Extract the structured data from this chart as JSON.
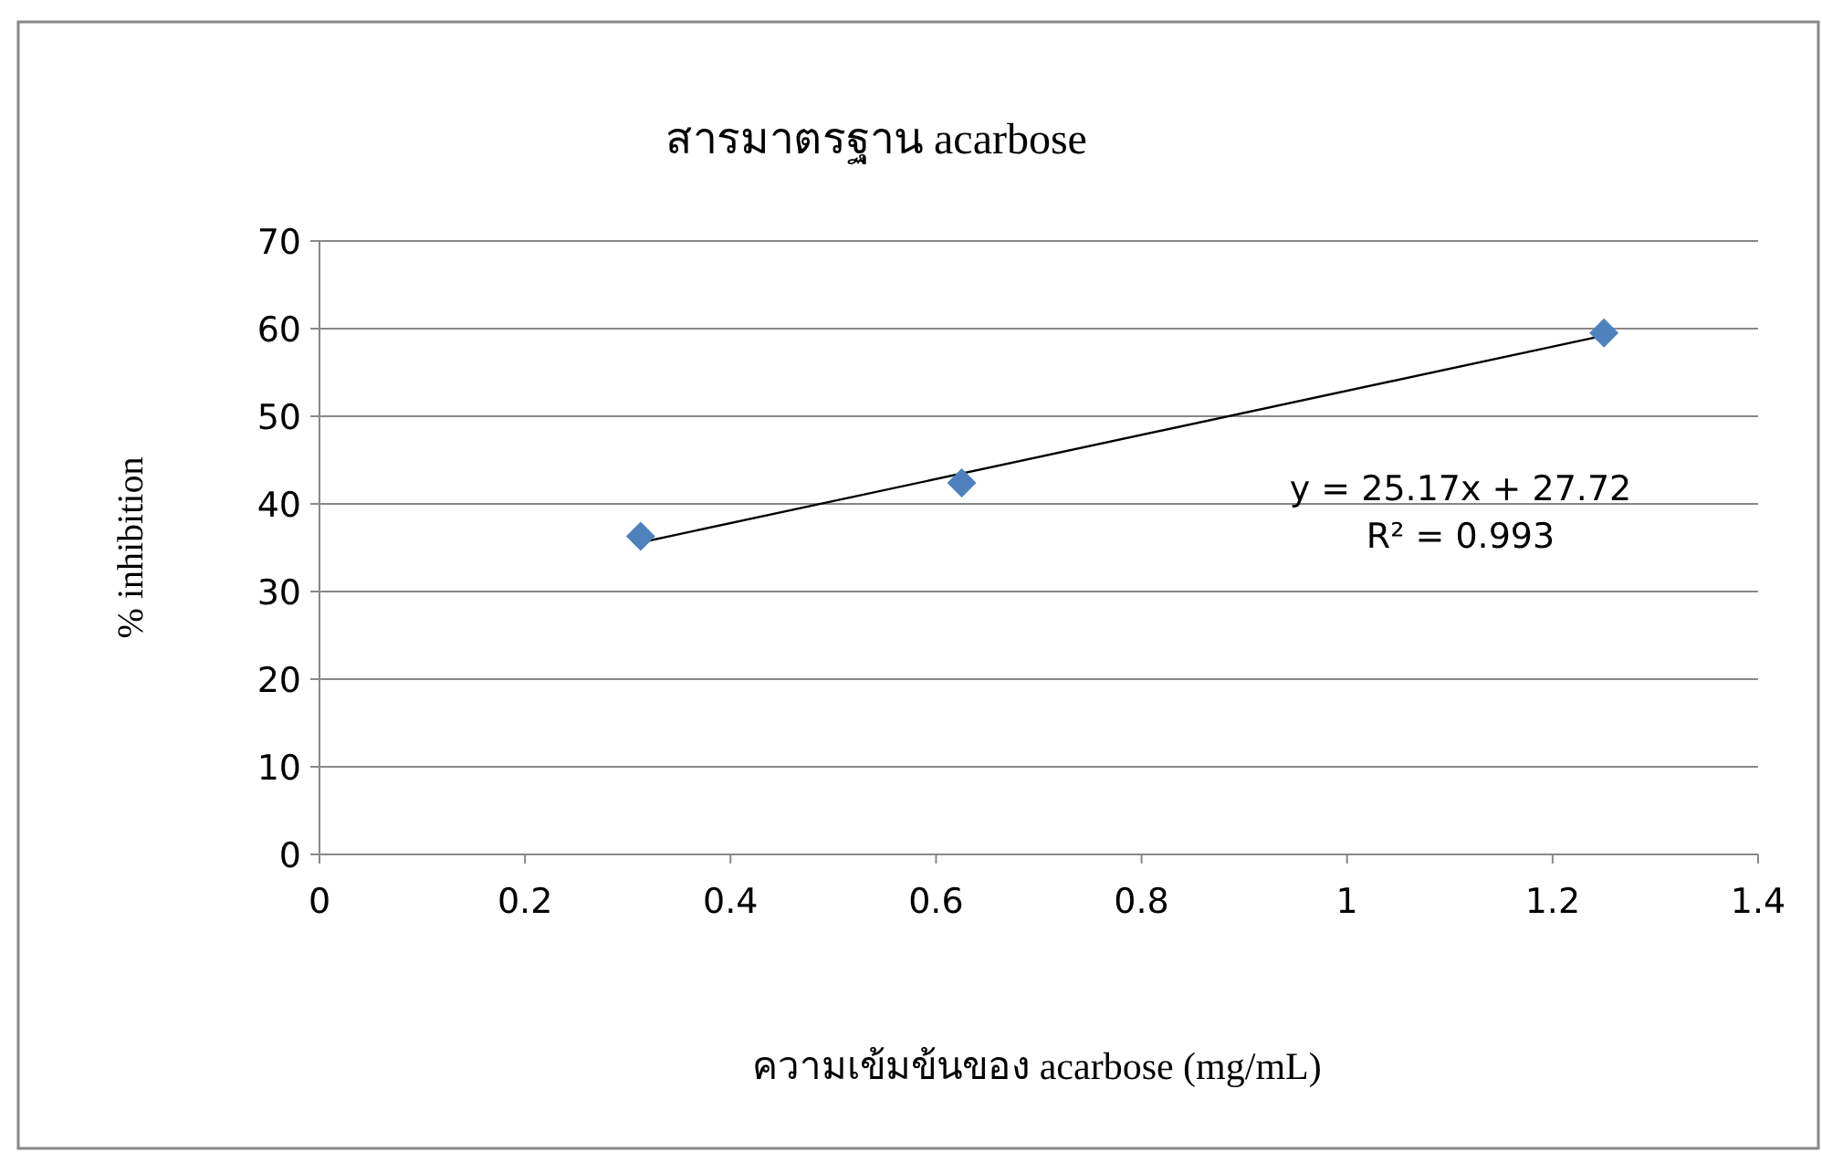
{
  "chart_data": {
    "type": "scatter",
    "title": "สารมาตรฐาน acarbose",
    "xlabel": "ความเข้มข้นของ acarbose (mg/mL)",
    "ylabel": "% inhibition",
    "xlim": [
      0,
      1.4
    ],
    "ylim": [
      0,
      70
    ],
    "xticks": [
      0,
      0.2,
      0.4,
      0.6,
      0.8,
      1,
      1.2,
      1.4
    ],
    "yticks": [
      0,
      10,
      20,
      30,
      40,
      50,
      60,
      70
    ],
    "grid": "y",
    "series": [
      {
        "marker": "diamond",
        "color": "#4f81bd",
        "x": [
          0.3125,
          0.625,
          1.25
        ],
        "values": [
          36.3,
          42.4,
          59.5
        ]
      },
      {
        "type": "line",
        "marker": "none",
        "color": "#000000",
        "x": [
          0.3125,
          1.25
        ],
        "values": [
          35.6,
          59.2
        ]
      }
    ],
    "annotations": [
      "y = 25.17x + 27.72",
      "R² = 0.993"
    ]
  }
}
